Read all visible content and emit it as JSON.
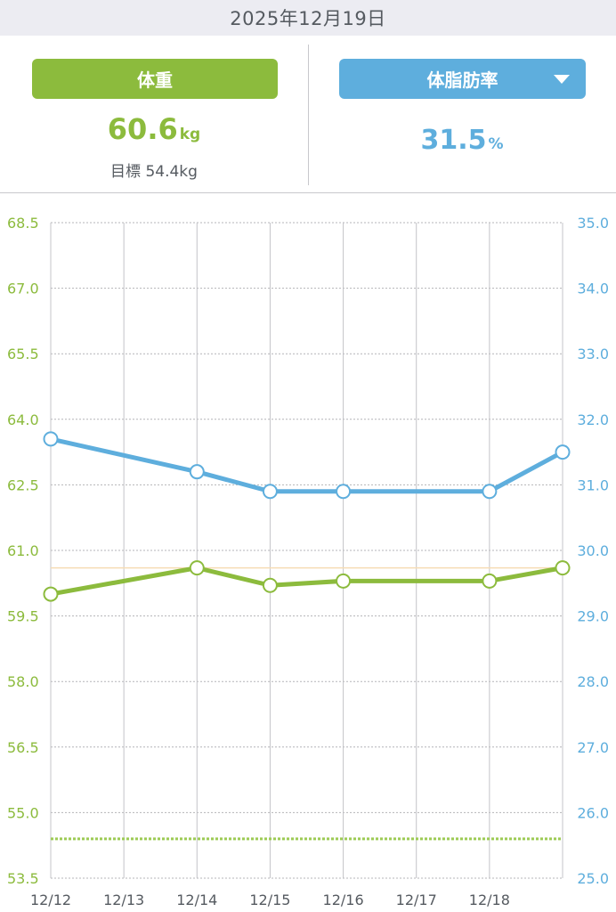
{
  "header": {
    "date": "2025年12月19日"
  },
  "weight": {
    "label": "体重",
    "value": "60.6",
    "unit": "kg",
    "goal_text": "目標 54.4kg"
  },
  "body_fat": {
    "label": "体脂肪率",
    "value": "31.5",
    "unit": "%"
  },
  "colors": {
    "weight": "#8cbb3d",
    "body_fat": "#5eaedd",
    "goal_line": "#9dcb55",
    "reference_line": "#f6dcb4"
  },
  "icons": {
    "metric_dropdown": "triangle-down-icon"
  },
  "chart_data": {
    "type": "line",
    "x": [
      "12/12",
      "12/13",
      "12/14",
      "12/15",
      "12/16",
      "12/17",
      "12/18",
      "12/19"
    ],
    "x_tick_labels": [
      "12/12",
      "12/13",
      "12/14",
      "12/15",
      "12/16",
      "12/17",
      "12/18"
    ],
    "y_left": {
      "ticks": [
        "68.5",
        "67.0",
        "65.5",
        "64.0",
        "62.5",
        "61.0",
        "59.5",
        "58.0",
        "56.5",
        "55.0",
        "53.5"
      ],
      "range": [
        53.5,
        68.5
      ]
    },
    "y_right": {
      "ticks": [
        "35.0",
        "34.0",
        "33.0",
        "32.0",
        "31.0",
        "30.0",
        "29.0",
        "28.0",
        "27.0",
        "26.0",
        "25.0"
      ],
      "range": [
        25.0,
        35.0
      ]
    },
    "series": [
      {
        "axis": "left",
        "color": "#8cbb3d",
        "points": [
          {
            "x": "12/12",
            "y": 60.0
          },
          {
            "x": "12/14",
            "y": 60.6
          },
          {
            "x": "12/15",
            "y": 60.2
          },
          {
            "x": "12/16",
            "y": 60.3
          },
          {
            "x": "12/18",
            "y": 60.3
          },
          {
            "x": "12/19",
            "y": 60.6
          }
        ]
      },
      {
        "axis": "right",
        "color": "#5eaedd",
        "points": [
          {
            "x": "12/12",
            "y": 31.7
          },
          {
            "x": "12/14",
            "y": 31.2
          },
          {
            "x": "12/15",
            "y": 30.9
          },
          {
            "x": "12/16",
            "y": 30.9
          },
          {
            "x": "12/18",
            "y": 30.9
          },
          {
            "x": "12/19",
            "y": 31.5
          }
        ]
      }
    ],
    "goal_line": {
      "axis": "left",
      "y": 54.4,
      "style": "dotted"
    },
    "reference_line": {
      "axis": "left",
      "y": 60.6
    },
    "grid": true
  }
}
